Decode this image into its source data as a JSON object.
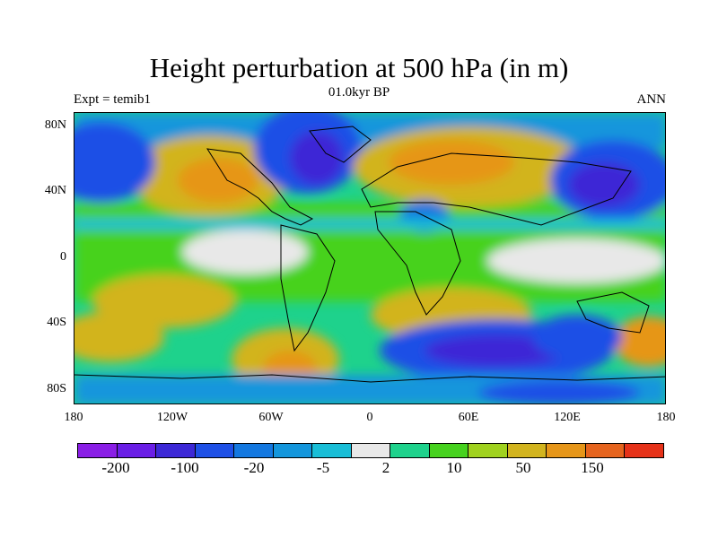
{
  "figure": {
    "title": "Height perturbation at 500 hPa (in m)",
    "left_string": "Expt = temib1",
    "center_string": "01.0kyr BP",
    "right_string": "ANN"
  },
  "axes": {
    "y_ticks": [
      "80N",
      "40N",
      "0",
      "40S",
      "80S"
    ],
    "x_ticks": [
      "180",
      "120W",
      "60W",
      "0",
      "60E",
      "120E",
      "180"
    ]
  },
  "colorbar": {
    "colors": [
      "#8a1ee6",
      "#6a1ee6",
      "#3c28d6",
      "#1e50e6",
      "#1478e0",
      "#1496dc",
      "#19bed7",
      "#e8e8e8",
      "#1ed28c",
      "#46d21e",
      "#a0d21e",
      "#d2b41e",
      "#e69619",
      "#e6641e",
      "#e63219"
    ],
    "labels": [
      "-200",
      "-100",
      "-20",
      "-5",
      "2",
      "10",
      "50",
      "150"
    ]
  },
  "chart_data": {
    "type": "heatmap",
    "title": "Height perturbation at 500 hPa (in m)",
    "variable": "500 hPa geopotential height perturbation",
    "units": "m",
    "experiment": "temib1",
    "period": "01.0kyr BP",
    "season": "ANN",
    "xlim": [
      -180,
      180
    ],
    "ylim": [
      -90,
      90
    ],
    "levels": [
      -200,
      -100,
      -20,
      -5,
      2,
      10,
      50,
      150
    ]
  }
}
